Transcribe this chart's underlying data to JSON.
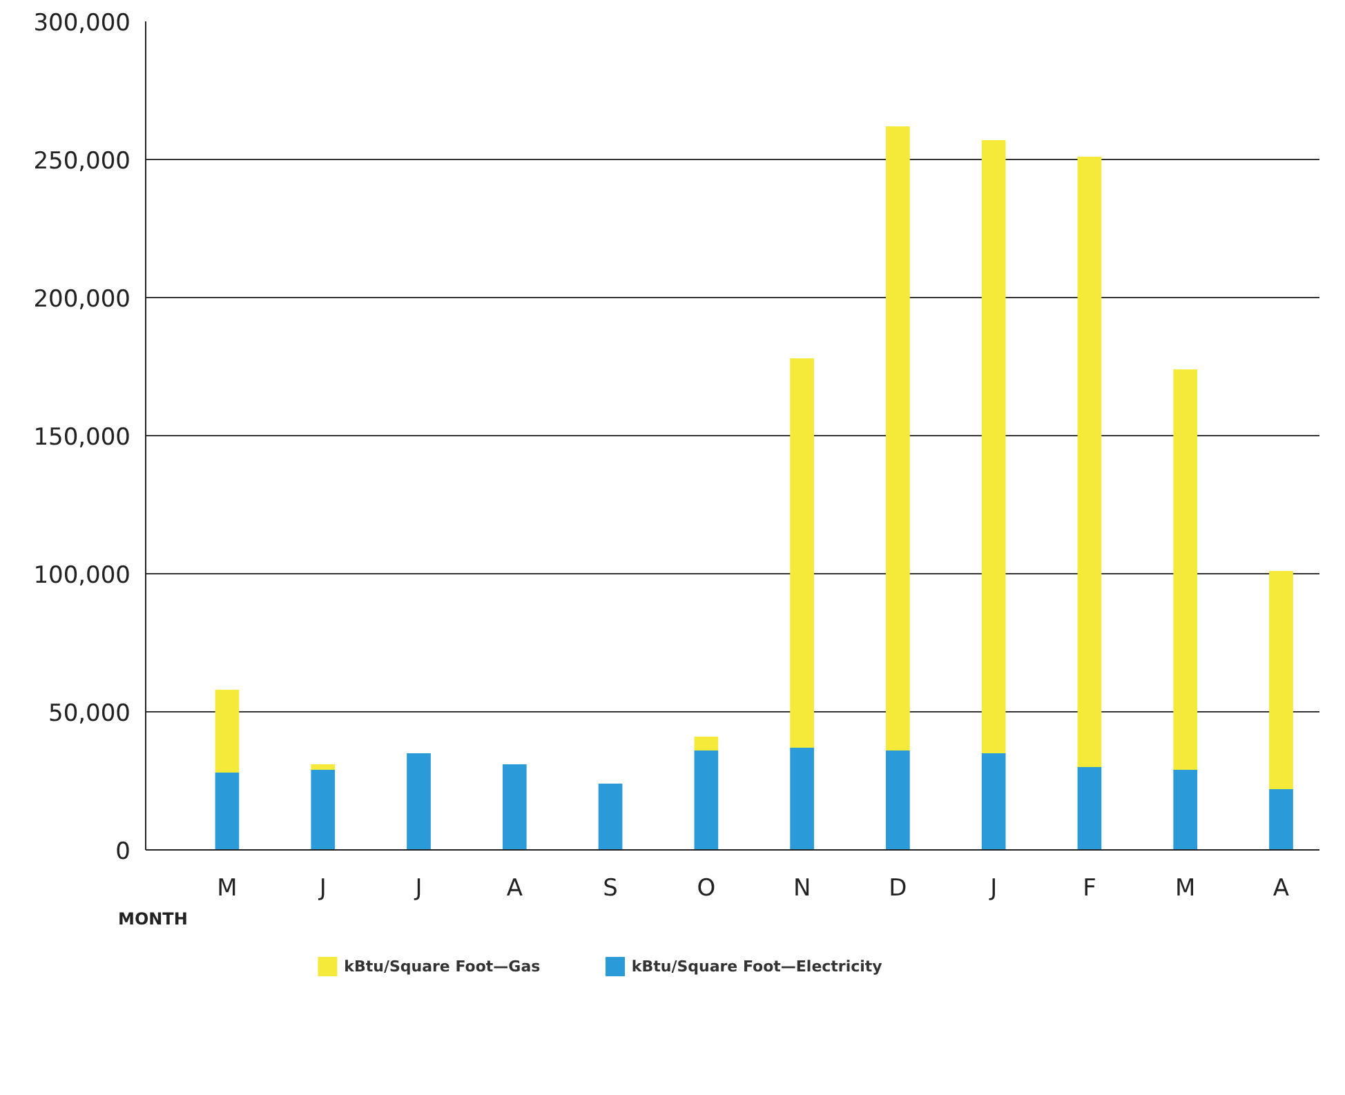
{
  "chart_data": {
    "type": "bar",
    "stacked": true,
    "xlabel": "MONTH",
    "categories": [
      "M",
      "J",
      "J",
      "A",
      "S",
      "O",
      "N",
      "D",
      "J",
      "F",
      "M",
      "A"
    ],
    "series": [
      {
        "name": "kBtu/Square Foot—Electricity",
        "color": "#2a9ad8",
        "values": [
          28000,
          29000,
          35000,
          31000,
          24000,
          36000,
          37000,
          36000,
          35000,
          30000,
          29000,
          22000
        ]
      },
      {
        "name": "kBtu/Square Foot—Gas",
        "color": "#f5e93a",
        "values": [
          30000,
          2000,
          0,
          0,
          0,
          5000,
          141000,
          226000,
          222000,
          221000,
          145000,
          79000
        ]
      }
    ],
    "ylim": [
      0,
      300000
    ],
    "yticks": [
      {
        "value": 0,
        "label": "0"
      },
      {
        "value": 50000,
        "label": "50,000"
      },
      {
        "value": 100000,
        "label": "100,000"
      },
      {
        "value": 150000,
        "label": "150,000"
      },
      {
        "value": 200000,
        "label": "200,000"
      },
      {
        "value": 250000,
        "label": "250,000"
      },
      {
        "value": 300000,
        "label": "300,000"
      }
    ],
    "grid": "y",
    "legend": "bottom"
  }
}
